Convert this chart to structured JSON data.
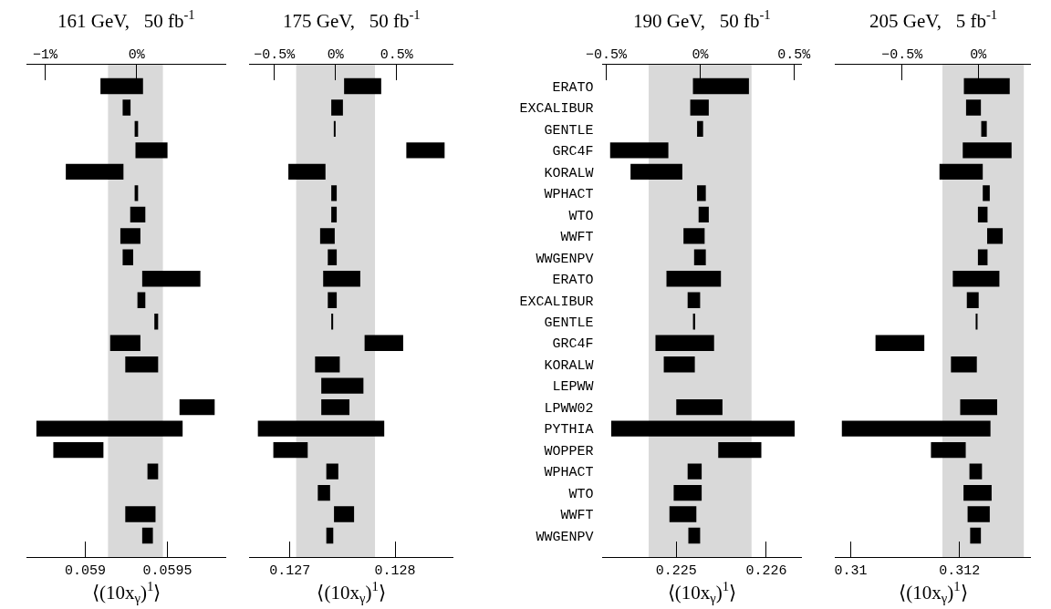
{
  "chart_data": [
    {
      "type": "bar",
      "orientation": "horizontal",
      "title": "161 GeV,   50 fb$^{-1}$",
      "xlabel": "⟨(10x$_{γ}$)$^{1}$⟩",
      "tick_labels": "x",
      "color": "#000000",
      "categories": [
        null,
        null,
        null,
        null,
        null,
        null,
        null,
        null,
        null,
        null,
        null,
        null,
        null,
        null,
        null,
        null,
        null,
        null,
        null,
        null,
        null,
        null
      ],
      "base": [
        0.059092,
        0.059227,
        0.0593,
        0.059305,
        0.058881,
        0.0593,
        0.059273,
        0.059213,
        0.059227,
        0.059346,
        0.059317,
        0.05942,
        0.059151,
        0.059243,
        null,
        0.059573,
        0.058702,
        0.058805,
        0.059378,
        null,
        0.059243,
        0.059346
      ],
      "values": [
        0.000259,
        4.8e-05,
        2.1e-05,
        0.000195,
        0.000351,
        2.1e-05,
        9.2e-05,
        0.000122,
        6.4e-05,
        0.000354,
        4.8e-05,
        2.3e-05,
        0.000184,
        0.0002,
        null,
        0.000214,
        0.00089,
        0.000305,
        6.5e-05,
        null,
        0.000184,
        6.5e-05
      ],
      "xlim": [
        0.05864,
        0.05986
      ],
      "xticks": [
        0.059,
        0.0595
      ],
      "x2lim": [
        -1.206,
        0.984
      ],
      "x2ticks": [
        {
          "value": -1,
          "label": "−1%"
        },
        {
          "value": 0,
          "label": "0%"
        }
      ],
      "bands": [
        {
          "axis": "x",
          "from": 0.059138,
          "to": 0.059472,
          "color": "#d9d9d9"
        }
      ]
    },
    {
      "type": "bar",
      "orientation": "horizontal",
      "title": "175 GeV,   50 fb$^{-1}$",
      "xlabel": "⟨(10x$_{γ}$)$^{1}$⟩",
      "tick_labels": "x",
      "color": "#000000",
      "categories": [
        null,
        null,
        null,
        null,
        null,
        null,
        null,
        null,
        null,
        null,
        null,
        null,
        null,
        null,
        null,
        null,
        null,
        null,
        null,
        null,
        null,
        null
      ],
      "base": [
        0.127515,
        0.127393,
        0.127423,
        0.128107,
        0.126985,
        0.127393,
        0.127393,
        0.127287,
        0.12736,
        0.127316,
        0.12736,
        0.127393,
        0.12771,
        0.127239,
        0.127298,
        0.127298,
        0.126695,
        0.126842,
        0.127346,
        0.127265,
        0.127419,
        0.127346
      ],
      "values": [
        0.000353,
        0.000111,
        7e-06,
        0.000364,
        0.000353,
        5.2e-05,
        5.2e-05,
        0.000139,
        8.5e-05,
        0.000353,
        8.5e-05,
        1.8e-05,
        0.000367,
        0.000235,
        0.000401,
        0.000268,
        0.001202,
        0.000327,
        0.000114,
        0.000117,
        0.000191,
        6.6e-05
      ],
      "xlim": [
        0.12661,
        0.128559
      ],
      "xticks": [
        0.127,
        0.128
      ],
      "x2lim": [
        -0.709,
        0.968
      ],
      "x2ticks": [
        {
          "value": -0.5,
          "label": "−0.5%"
        },
        {
          "value": 0,
          "label": "0%"
        },
        {
          "value": 0.5,
          "label": "0.5%"
        }
      ],
      "bands": [
        {
          "axis": "x",
          "from": 0.127059,
          "to": 0.127809,
          "color": "#d9d9d9"
        }
      ]
    },
    {
      "type": "bar",
      "orientation": "horizontal",
      "title": "190 GeV,   50 fb$^{-1}$",
      "xlabel": "⟨(10x$_{γ}$)$^{1}$⟩",
      "color": "#000000",
      "categories": [
        "ERATO",
        "EXCALIBUR",
        "GENTLE",
        "GRC4F",
        "KORALW",
        "WPHACT",
        "WTO",
        "WWFT",
        "WWGENPV",
        "ERATO",
        "EXCALIBUR",
        "GENTLE",
        "GRC4F",
        "KORALW",
        "LEPWW",
        "LPWW02",
        "PYTHIA",
        "WOPPER",
        "WPHACT",
        "WTO",
        "WWFT",
        "WWGENPV"
      ],
      "base": [
        0.225185,
        0.225155,
        0.225231,
        0.224265,
        0.224492,
        0.225231,
        0.225248,
        0.22508,
        0.225198,
        0.224891,
        0.225126,
        0.225193,
        0.224769,
        0.224861,
        null,
        0.225,
        0.224277,
        0.225466,
        0.225126,
        0.224971,
        0.224924,
        0.225134
      ],
      "values": [
        0.000622,
        0.000206,
        6.7e-05,
        0.000647,
        0.000575,
        9.7e-05,
        0.000113,
        0.000235,
        0.00013,
        0.000605,
        0.000139,
        1.7e-05,
        0.000651,
        0.000345,
        null,
        0.000513,
        0.002038,
        0.000479,
        0.000156,
        0.000311,
        0.000299,
        0.000131
      ],
      "xlim": [
        0.224172,
        0.226399
      ],
      "xticks": [
        0.225,
        0.226
      ],
      "x2lim": [
        -0.524,
        0.544
      ],
      "x2ticks": [
        {
          "value": -0.5,
          "label": "−0.5%"
        },
        {
          "value": 0,
          "label": "0%"
        },
        {
          "value": 0.5,
          "label": "0.5%"
        }
      ],
      "bands": [
        {
          "axis": "x",
          "from": 0.224693,
          "to": 0.225836,
          "color": "#d9d9d9"
        }
      ]
    },
    {
      "type": "bar",
      "orientation": "horizontal",
      "title": "205 GeV,   5 fb$^{-1}$",
      "xlabel": "⟨(10x$_{γ}$)$^{1}$⟩",
      "tick_labels": "x",
      "color": "#000000",
      "categories": [
        null,
        null,
        null,
        null,
        null,
        null,
        null,
        null,
        null,
        null,
        null,
        null,
        null,
        null,
        null,
        null,
        null,
        null,
        null,
        null,
        null,
        null
      ],
      "base": [
        0.312082,
        0.312122,
        0.312401,
        0.312061,
        0.311633,
        0.312429,
        0.31234,
        0.31251,
        0.31234,
        0.311878,
        0.312136,
        0.312313,
        0.310456,
        0.311844,
        null,
        0.312014,
        0.309837,
        0.311476,
        0.312184,
        0.312075,
        0.31215,
        0.312197
      ],
      "values": [
        0.000843,
        0.000273,
        0.000102,
        0.000898,
        0.000796,
        0.000129,
        0.000177,
        0.000286,
        0.000177,
        0.000857,
        0.000218,
        2e-05,
        0.000898,
        0.000476,
        null,
        0.00068,
        0.002734,
        0.00064,
        0.000231,
        0.000517,
        0.000408,
        0.000198
      ],
      "xlim": [
        0.309714,
        0.31332
      ],
      "xticks": [
        0.31,
        0.312
      ],
      "x2lim": [
        -0.939,
        0.347
      ],
      "x2ticks": [
        {
          "value": -0.5,
          "label": "−0.5%"
        },
        {
          "value": 0,
          "label": "0%"
        }
      ],
      "bands": [
        {
          "axis": "x",
          "from": 0.311687,
          "to": 0.313184,
          "color": "#d9d9d9"
        }
      ]
    }
  ]
}
